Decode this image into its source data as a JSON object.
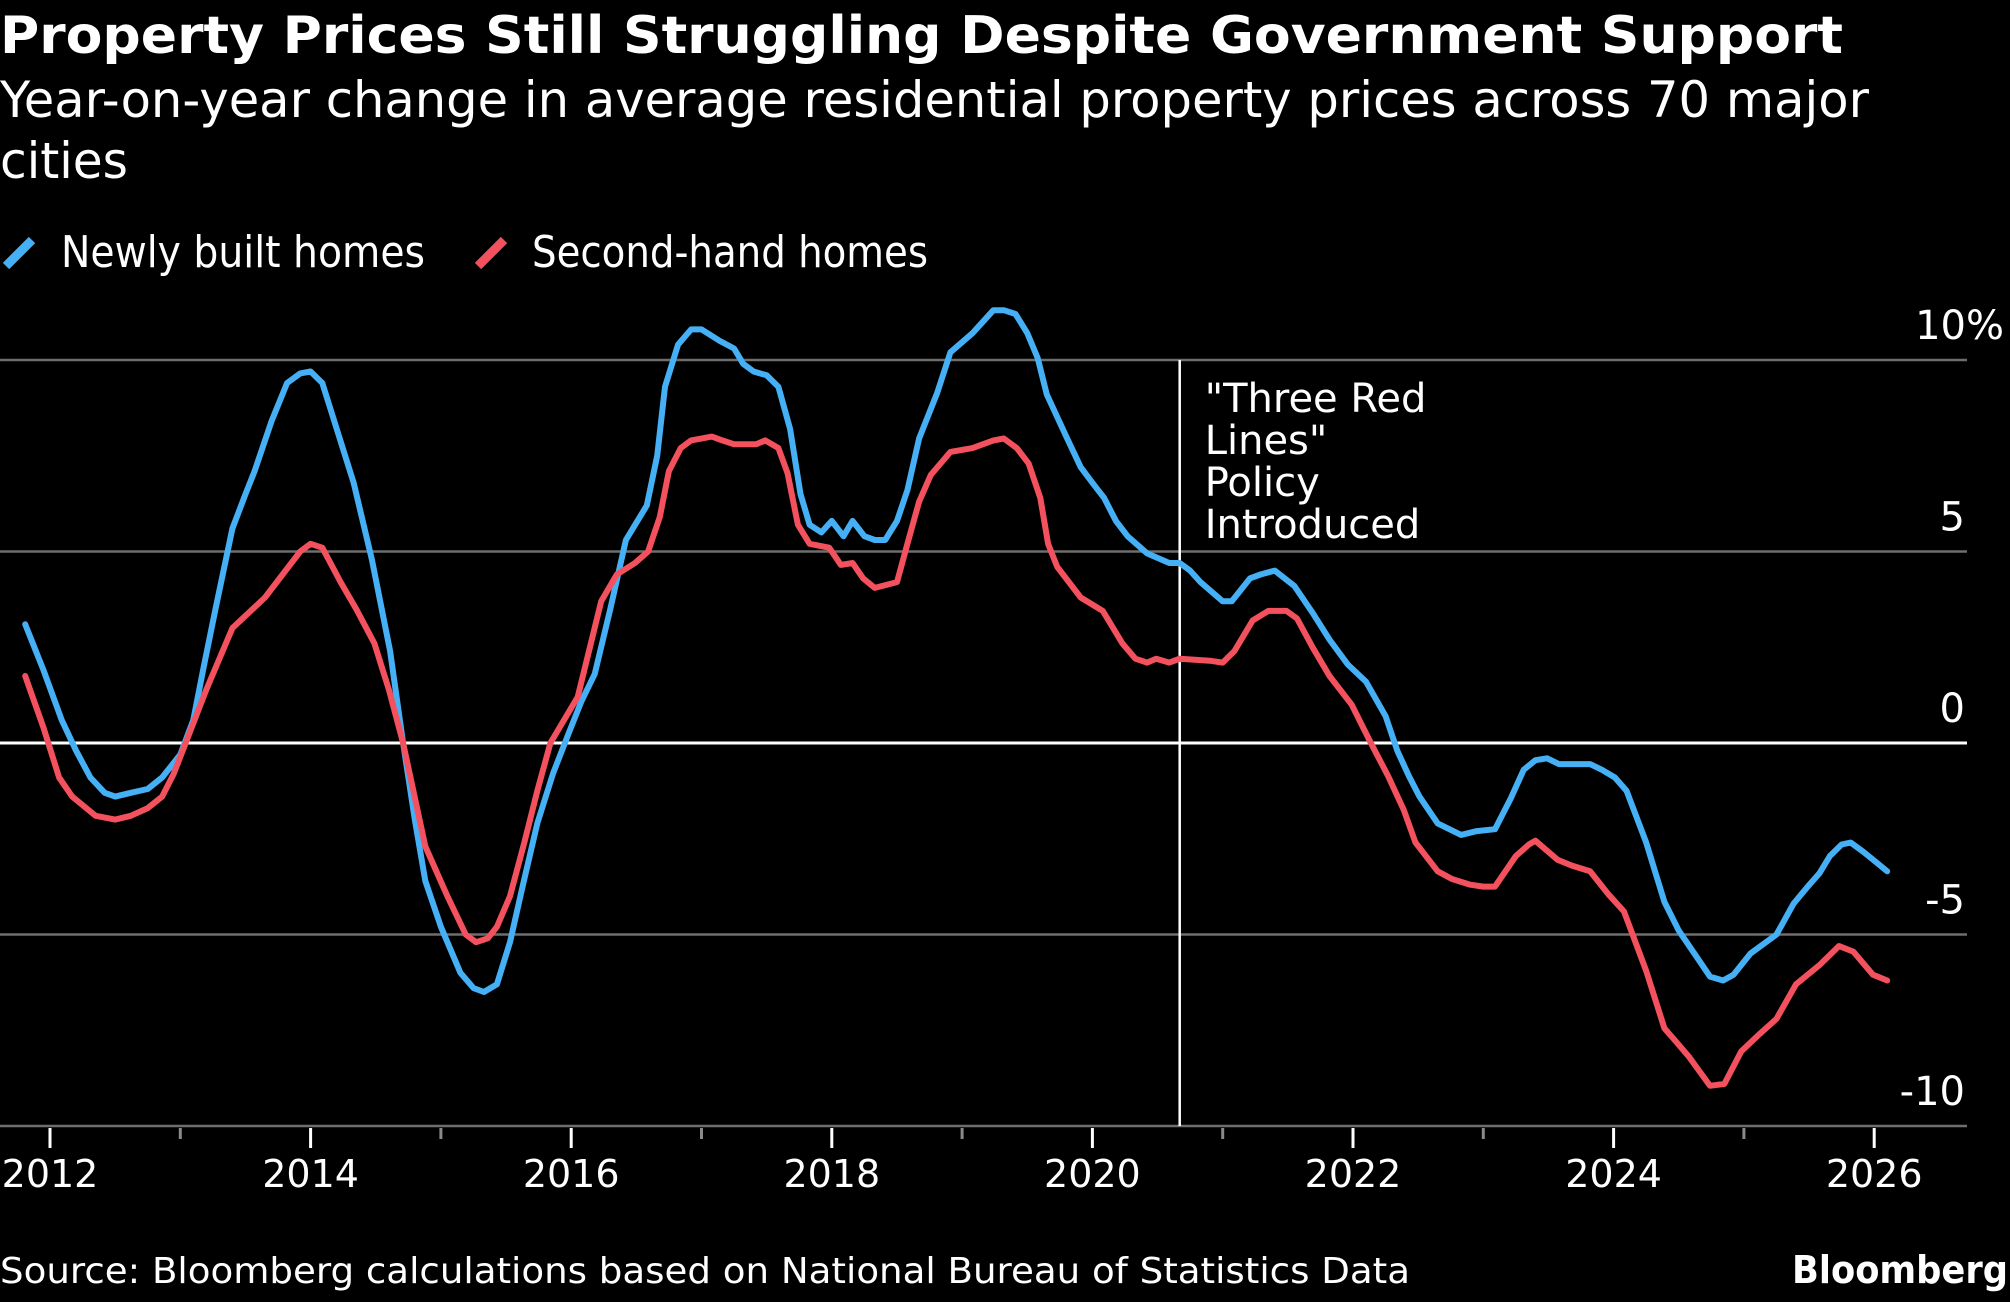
{
  "header": {
    "title": "Property Prices Still Struggling Despite Government Support",
    "subtitle_line1": "Year-on-year change in average residential property prices across 70 major",
    "subtitle_line2": "cities"
  },
  "legend": [
    {
      "label": "Newly built homes",
      "icon": "blue-slash-legend-icon",
      "color": "#45b0f5"
    },
    {
      "label": "Second-hand homes",
      "icon": "red-slash-legend-icon",
      "color": "#f4515e"
    }
  ],
  "footer": {
    "source": "Source: Bloomberg calculations based on National Bureau of Statistics Data",
    "brand": "Bloomberg"
  },
  "chart_data": {
    "type": "line",
    "title": "Property Prices Still Struggling Despite Government Support",
    "subtitle": "Year-on-year change in average residential property prices across 70 major cities",
    "xlabel": "",
    "ylabel": "",
    "xlim": [
      2011.65,
      2026.6
    ],
    "ylim": [
      -10,
      10
    ],
    "x_ticks": [
      2012,
      2014,
      2016,
      2018,
      2020,
      2022,
      2026,
      2024
    ],
    "x_tick_labels": [
      "2012",
      "2014",
      "2016",
      "2018",
      "2020",
      "2022",
      "2026",
      "2024"
    ],
    "x_minor_ticks": [
      2013,
      2015,
      2017,
      2019,
      2021,
      2023,
      2025
    ],
    "y_ticks": [
      10,
      5,
      0,
      -5,
      -10
    ],
    "y_tick_labels": [
      "10%",
      "5",
      "0",
      "-5",
      "-10"
    ],
    "grid": true,
    "y_axis_side": "right",
    "legend_position": "top-left",
    "annotations": [
      {
        "x": 2020.67,
        "lines": [
          "\"Three Red",
          "Lines\"",
          "Policy",
          "Introduced"
        ]
      }
    ],
    "series": [
      {
        "name": "Newly built homes",
        "color": "#45b0f5",
        "points": [
          [
            2011.81,
            3.1
          ],
          [
            2011.95,
            1.9
          ],
          [
            2012.09,
            0.6
          ],
          [
            2012.2,
            -0.2
          ],
          [
            2012.31,
            -0.9
          ],
          [
            2012.42,
            -1.3
          ],
          [
            2012.5,
            -1.4
          ],
          [
            2012.62,
            -1.3
          ],
          [
            2012.75,
            -1.2
          ],
          [
            2012.86,
            -0.9
          ],
          [
            2013.0,
            -0.3
          ],
          [
            2013.1,
            0.6
          ],
          [
            2013.18,
            2.0
          ],
          [
            2013.27,
            3.5
          ],
          [
            2013.4,
            5.6
          ],
          [
            2013.5,
            6.5
          ],
          [
            2013.57,
            7.1
          ],
          [
            2013.7,
            8.4
          ],
          [
            2013.82,
            9.4
          ],
          [
            2013.92,
            9.65
          ],
          [
            2014.0,
            9.7
          ],
          [
            2014.09,
            9.4
          ],
          [
            2014.2,
            8.2
          ],
          [
            2014.33,
            6.8
          ],
          [
            2014.47,
            4.8
          ],
          [
            2014.61,
            2.4
          ],
          [
            2014.71,
            0.0
          ],
          [
            2014.8,
            -2.0
          ],
          [
            2014.88,
            -3.6
          ],
          [
            2015.0,
            -4.8
          ],
          [
            2015.15,
            -6.0
          ],
          [
            2015.25,
            -6.4
          ],
          [
            2015.33,
            -6.5
          ],
          [
            2015.43,
            -6.3
          ],
          [
            2015.53,
            -5.2
          ],
          [
            2015.63,
            -3.7
          ],
          [
            2015.74,
            -2.1
          ],
          [
            2015.86,
            -0.8
          ],
          [
            2015.98,
            0.25
          ],
          [
            2016.08,
            1.1
          ],
          [
            2016.18,
            1.8
          ],
          [
            2016.3,
            3.5
          ],
          [
            2016.42,
            5.3
          ],
          [
            2016.58,
            6.2
          ],
          [
            2016.66,
            7.5
          ],
          [
            2016.72,
            9.3
          ],
          [
            2016.82,
            10.4
          ],
          [
            2016.92,
            10.8
          ],
          [
            2017.0,
            10.8
          ],
          [
            2017.14,
            10.5
          ],
          [
            2017.25,
            10.3
          ],
          [
            2017.32,
            9.9
          ],
          [
            2017.4,
            9.7
          ],
          [
            2017.5,
            9.6
          ],
          [
            2017.59,
            9.3
          ],
          [
            2017.68,
            8.2
          ],
          [
            2017.76,
            6.5
          ],
          [
            2017.83,
            5.7
          ],
          [
            2017.92,
            5.5
          ],
          [
            2018.0,
            5.8
          ],
          [
            2018.09,
            5.4
          ],
          [
            2018.16,
            5.8
          ],
          [
            2018.25,
            5.4
          ],
          [
            2018.33,
            5.3
          ],
          [
            2018.41,
            5.3
          ],
          [
            2018.5,
            5.8
          ],
          [
            2018.58,
            6.6
          ],
          [
            2018.67,
            7.95
          ],
          [
            2018.81,
            9.15
          ],
          [
            2018.91,
            10.2
          ],
          [
            2019.08,
            10.7
          ],
          [
            2019.24,
            11.3
          ],
          [
            2019.32,
            11.3
          ],
          [
            2019.41,
            11.2
          ],
          [
            2019.5,
            10.7
          ],
          [
            2019.58,
            10.05
          ],
          [
            2019.65,
            9.1
          ],
          [
            2019.8,
            8.0
          ],
          [
            2019.91,
            7.2
          ],
          [
            2020.01,
            6.75
          ],
          [
            2020.09,
            6.4
          ],
          [
            2020.18,
            5.8
          ],
          [
            2020.27,
            5.4
          ],
          [
            2020.42,
            4.95
          ],
          [
            2020.59,
            4.7
          ],
          [
            2020.67,
            4.7
          ],
          [
            2020.75,
            4.5
          ],
          [
            2020.83,
            4.2
          ],
          [
            2021.0,
            3.7
          ],
          [
            2021.07,
            3.7
          ],
          [
            2021.21,
            4.3
          ],
          [
            2021.29,
            4.4
          ],
          [
            2021.4,
            4.5
          ],
          [
            2021.55,
            4.1
          ],
          [
            2021.69,
            3.4
          ],
          [
            2021.82,
            2.7
          ],
          [
            2021.96,
            2.05
          ],
          [
            2022.1,
            1.6
          ],
          [
            2022.25,
            0.7
          ],
          [
            2022.34,
            -0.2
          ],
          [
            2022.43,
            -0.87
          ],
          [
            2022.51,
            -1.4
          ],
          [
            2022.65,
            -2.1
          ],
          [
            2022.83,
            -2.4
          ],
          [
            2022.95,
            -2.3
          ],
          [
            2023.09,
            -2.25
          ],
          [
            2023.21,
            -1.45
          ],
          [
            2023.31,
            -0.7
          ],
          [
            2023.4,
            -0.45
          ],
          [
            2023.49,
            -0.4
          ],
          [
            2023.58,
            -0.55
          ],
          [
            2023.7,
            -0.55
          ],
          [
            2023.82,
            -0.55
          ],
          [
            2023.91,
            -0.7
          ],
          [
            2024.01,
            -0.9
          ],
          [
            2024.1,
            -1.25
          ],
          [
            2024.25,
            -2.6
          ],
          [
            2024.39,
            -4.15
          ],
          [
            2024.5,
            -4.9
          ],
          [
            2024.62,
            -5.5
          ],
          [
            2024.74,
            -6.1
          ],
          [
            2024.84,
            -6.2
          ],
          [
            2024.92,
            -6.05
          ],
          [
            2025.05,
            -5.5
          ],
          [
            2025.25,
            -5.0
          ],
          [
            2025.38,
            -4.2
          ],
          [
            2025.49,
            -3.75
          ],
          [
            2025.58,
            -3.4
          ],
          [
            2025.66,
            -2.95
          ],
          [
            2025.75,
            -2.65
          ],
          [
            2025.82,
            -2.6
          ],
          [
            2025.92,
            -2.85
          ],
          [
            2026.01,
            -3.1
          ],
          [
            2026.1,
            -3.35
          ]
        ]
      },
      {
        "name": "Second-hand homes",
        "color": "#f4515e",
        "points": [
          [
            2011.81,
            1.75
          ],
          [
            2011.95,
            0.4
          ],
          [
            2012.07,
            -0.9
          ],
          [
            2012.17,
            -1.4
          ],
          [
            2012.35,
            -1.9
          ],
          [
            2012.5,
            -2.0
          ],
          [
            2012.62,
            -1.9
          ],
          [
            2012.75,
            -1.7
          ],
          [
            2012.86,
            -1.4
          ],
          [
            2012.95,
            -0.8
          ],
          [
            2013.03,
            -0.1
          ],
          [
            2013.2,
            1.4
          ],
          [
            2013.4,
            3.0
          ],
          [
            2013.65,
            3.8
          ],
          [
            2013.92,
            5.0
          ],
          [
            2014.0,
            5.2
          ],
          [
            2014.09,
            5.1
          ],
          [
            2014.23,
            4.2
          ],
          [
            2014.35,
            3.5
          ],
          [
            2014.49,
            2.6
          ],
          [
            2014.6,
            1.4
          ],
          [
            2014.71,
            0.0
          ],
          [
            2014.88,
            -2.7
          ],
          [
            2015.05,
            -4.0
          ],
          [
            2015.19,
            -5.0
          ],
          [
            2015.27,
            -5.2
          ],
          [
            2015.36,
            -5.1
          ],
          [
            2015.43,
            -4.8
          ],
          [
            2015.53,
            -4.0
          ],
          [
            2015.64,
            -2.6
          ],
          [
            2015.74,
            -1.25
          ],
          [
            2015.84,
            0.0
          ],
          [
            2016.05,
            1.2
          ],
          [
            2016.23,
            3.7
          ],
          [
            2016.35,
            4.4
          ],
          [
            2016.49,
            4.7
          ],
          [
            2016.59,
            5.0
          ],
          [
            2016.68,
            5.9
          ],
          [
            2016.75,
            7.1
          ],
          [
            2016.84,
            7.7
          ],
          [
            2016.92,
            7.9
          ],
          [
            2017.08,
            8.0
          ],
          [
            2017.16,
            7.9
          ],
          [
            2017.25,
            7.8
          ],
          [
            2017.42,
            7.8
          ],
          [
            2017.49,
            7.9
          ],
          [
            2017.59,
            7.7
          ],
          [
            2017.66,
            7.05
          ],
          [
            2017.74,
            5.7
          ],
          [
            2017.83,
            5.2
          ],
          [
            2017.98,
            5.1
          ],
          [
            2018.07,
            4.65
          ],
          [
            2018.16,
            4.7
          ],
          [
            2018.24,
            4.3
          ],
          [
            2018.33,
            4.05
          ],
          [
            2018.5,
            4.2
          ],
          [
            2018.58,
            5.2
          ],
          [
            2018.67,
            6.3
          ],
          [
            2018.76,
            7.0
          ],
          [
            2018.91,
            7.6
          ],
          [
            2019.08,
            7.7
          ],
          [
            2019.24,
            7.9
          ],
          [
            2019.32,
            7.95
          ],
          [
            2019.42,
            7.7
          ],
          [
            2019.51,
            7.3
          ],
          [
            2019.6,
            6.4
          ],
          [
            2019.66,
            5.2
          ],
          [
            2019.73,
            4.6
          ],
          [
            2019.91,
            3.8
          ],
          [
            2020.08,
            3.45
          ],
          [
            2020.23,
            2.6
          ],
          [
            2020.33,
            2.2
          ],
          [
            2020.42,
            2.1
          ],
          [
            2020.49,
            2.2
          ],
          [
            2020.59,
            2.1
          ],
          [
            2020.67,
            2.2
          ],
          [
            2020.9,
            2.15
          ],
          [
            2021.0,
            2.1
          ],
          [
            2021.09,
            2.4
          ],
          [
            2021.23,
            3.2
          ],
          [
            2021.35,
            3.45
          ],
          [
            2021.49,
            3.45
          ],
          [
            2021.57,
            3.25
          ],
          [
            2021.69,
            2.5
          ],
          [
            2021.82,
            1.75
          ],
          [
            2021.99,
            1.0
          ],
          [
            2022.13,
            0.05
          ],
          [
            2022.27,
            -0.87
          ],
          [
            2022.39,
            -1.75
          ],
          [
            2022.48,
            -2.6
          ],
          [
            2022.65,
            -3.35
          ],
          [
            2022.76,
            -3.55
          ],
          [
            2022.9,
            -3.7
          ],
          [
            2023.0,
            -3.75
          ],
          [
            2023.09,
            -3.75
          ],
          [
            2023.25,
            -2.95
          ],
          [
            2023.35,
            -2.65
          ],
          [
            2023.4,
            -2.55
          ],
          [
            2023.57,
            -3.05
          ],
          [
            2023.68,
            -3.2
          ],
          [
            2023.82,
            -3.35
          ],
          [
            2023.96,
            -3.95
          ],
          [
            2024.08,
            -4.4
          ],
          [
            2024.25,
            -5.95
          ],
          [
            2024.39,
            -7.45
          ],
          [
            2024.48,
            -7.8
          ],
          [
            2024.58,
            -8.2
          ],
          [
            2024.74,
            -8.95
          ],
          [
            2024.85,
            -8.9
          ],
          [
            2024.98,
            -8.05
          ],
          [
            2025.12,
            -7.6
          ],
          [
            2025.25,
            -7.2
          ],
          [
            2025.4,
            -6.3
          ],
          [
            2025.58,
            -5.8
          ],
          [
            2025.73,
            -5.3
          ],
          [
            2025.84,
            -5.45
          ],
          [
            2025.99,
            -6.05
          ],
          [
            2026.1,
            -6.2
          ]
        ]
      }
    ]
  }
}
